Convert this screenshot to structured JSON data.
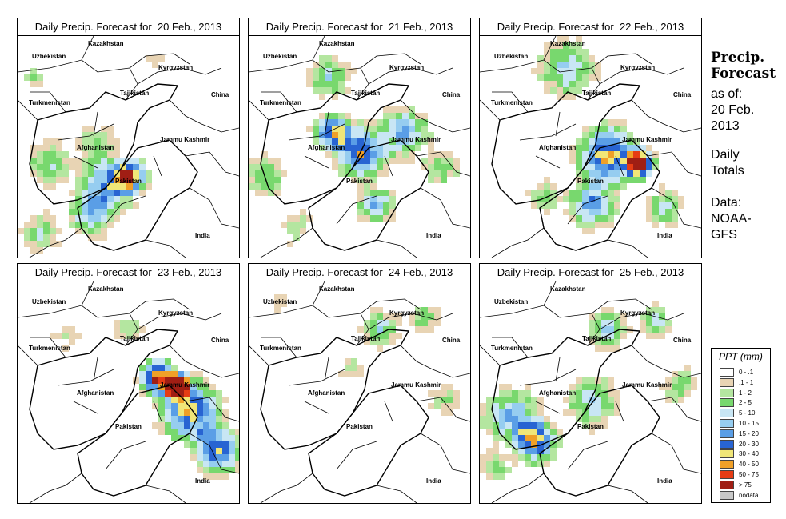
{
  "panels": [
    {
      "title": "Daily Precip. Forecast for  20 Feb., 2013",
      "pattern": "day20"
    },
    {
      "title": "Daily Precip. Forecast for  21 Feb., 2013",
      "pattern": "day21"
    },
    {
      "title": "Daily Precip. Forecast for  22 Feb., 2013",
      "pattern": "day22"
    },
    {
      "title": "Daily Precip. Forecast for  23 Feb., 2013",
      "pattern": "day23"
    },
    {
      "title": "Daily Precip. Forecast for  24 Feb., 2013",
      "pattern": "day24"
    },
    {
      "title": "Daily Precip. Forecast for  25 Feb., 2013",
      "pattern": "day25"
    }
  ],
  "map_labels": {
    "kazakhstan": "Kazakhstan",
    "uzbekistan": "Uzbekistan",
    "kyrgyzstan": "Kyrgyzstan",
    "tajikistan": "Tajikistan",
    "china": "China",
    "turkmenistan": "Turkmenistan",
    "afghanistan": "Afghanistan",
    "jammu_kashmir": "Jammu Kashmir",
    "pakistan": "Pakistan",
    "india": "India"
  },
  "side_panel": {
    "title_line1": "Precip.",
    "title_line2": "Forecast",
    "asof_line1": "as of:",
    "asof_line2": "20 Feb.",
    "asof_line3": "2013",
    "totals_line1": "Daily",
    "totals_line2": "Totals",
    "data_line1": "Data:",
    "data_line2": "NOAA-",
    "data_line3": "GFS"
  },
  "legend": {
    "title": "PPT (mm)",
    "items": [
      {
        "label": "0 - .1",
        "color": "#ffffff"
      },
      {
        "label": ".1 - 1",
        "color": "#e8d4b4"
      },
      {
        "label": "1 - 2",
        "color": "#b4e6a0"
      },
      {
        "label": "2 - 5",
        "color": "#78d86e"
      },
      {
        "label": "5 - 10",
        "color": "#c8e6f4"
      },
      {
        "label": "10 - 15",
        "color": "#96cdf0"
      },
      {
        "label": "15 - 20",
        "color": "#5a9ee6"
      },
      {
        "label": "20 - 30",
        "color": "#2864d2"
      },
      {
        "label": "30 - 40",
        "color": "#f0e678"
      },
      {
        "label": "40 - 50",
        "color": "#f0a028"
      },
      {
        "label": "50 - 75",
        "color": "#e63c14"
      },
      {
        "label": "> 75",
        "color": "#a01e14"
      },
      {
        "label": "nodata",
        "color": "#c8c8c8"
      }
    ]
  }
}
